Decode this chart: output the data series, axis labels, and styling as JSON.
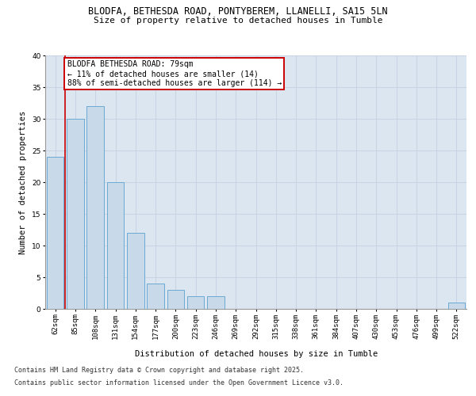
{
  "title_line1": "BLODFA, BETHESDA ROAD, PONTYBEREM, LLANELLI, SA15 5LN",
  "title_line2": "Size of property relative to detached houses in Tumble",
  "xlabel": "Distribution of detached houses by size in Tumble",
  "ylabel": "Number of detached properties",
  "categories": [
    "62sqm",
    "85sqm",
    "108sqm",
    "131sqm",
    "154sqm",
    "177sqm",
    "200sqm",
    "223sqm",
    "246sqm",
    "269sqm",
    "292sqm",
    "315sqm",
    "338sqm",
    "361sqm",
    "384sqm",
    "407sqm",
    "430sqm",
    "453sqm",
    "476sqm",
    "499sqm",
    "522sqm"
  ],
  "values": [
    24,
    30,
    32,
    20,
    12,
    4,
    3,
    2,
    2,
    0,
    0,
    0,
    0,
    0,
    0,
    0,
    0,
    0,
    0,
    0,
    1
  ],
  "bar_color": "#c8d9ea",
  "bar_edge_color": "#6aaad4",
  "highlight_line_color": "#cc0000",
  "annotation_text": "BLODFA BETHESDA ROAD: 79sqm\n← 11% of detached houses are smaller (14)\n88% of semi-detached houses are larger (114) →",
  "annotation_box_facecolor": "#ffffff",
  "annotation_box_edgecolor": "#cc0000",
  "grid_color": "#c8d4e3",
  "background_color": "#dce6f0",
  "ylim": [
    0,
    40
  ],
  "yticks": [
    0,
    5,
    10,
    15,
    20,
    25,
    30,
    35,
    40
  ],
  "footer_line1": "Contains HM Land Registry data © Crown copyright and database right 2025.",
  "footer_line2": "Contains public sector information licensed under the Open Government Licence v3.0.",
  "title_fontsize": 8.5,
  "subtitle_fontsize": 8,
  "axis_label_fontsize": 7.5,
  "tick_fontsize": 6.5,
  "annotation_fontsize": 7,
  "footer_fontsize": 6
}
